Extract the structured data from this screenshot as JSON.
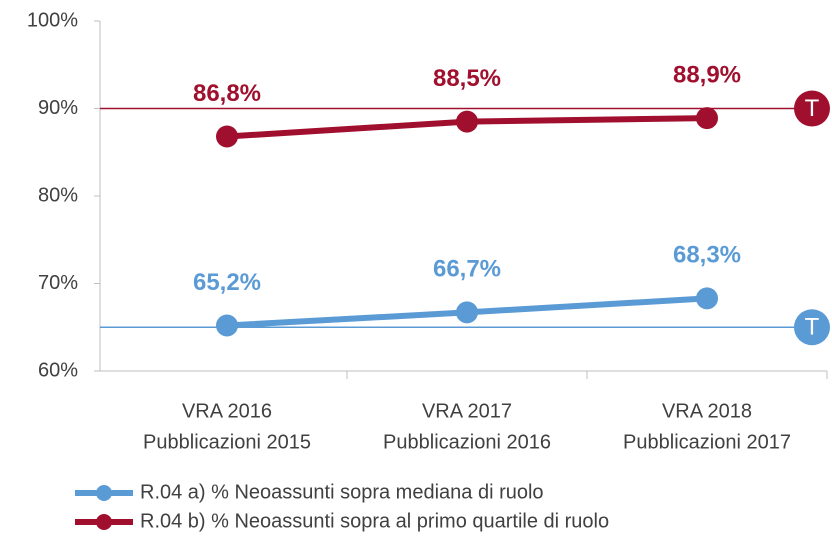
{
  "chart_data": {
    "type": "line",
    "categories": [
      [
        "VRA 2016",
        "Pubblicazioni 2015"
      ],
      [
        "VRA 2017",
        "Pubblicazioni 2016"
      ],
      [
        "VRA 2018",
        "Pubblicazioni 2017"
      ]
    ],
    "series": [
      {
        "name": "R.04 a) % Neoassunti sopra mediana di ruolo",
        "color": "#5b9bd5",
        "values": [
          65.2,
          66.7,
          68.3
        ],
        "value_labels": [
          "65,2%",
          "66,7%",
          "68,3%"
        ],
        "target": 65,
        "target_label": "T"
      },
      {
        "name": "R.04 b) % Neoassunti sopra al primo quartile di ruolo",
        "color": "#a0102e",
        "values": [
          86.8,
          88.5,
          88.9
        ],
        "value_labels": [
          "86,8%",
          "88,5%",
          "88,9%"
        ],
        "target": 90,
        "target_label": "T"
      }
    ],
    "ylim": [
      60,
      100
    ],
    "yticks": [
      {
        "value": 60,
        "label": "60%"
      },
      {
        "value": 70,
        "label": "70%"
      },
      {
        "value": 80,
        "label": "80%"
      },
      {
        "value": 90,
        "label": "90%"
      },
      {
        "value": 100,
        "label": "100%"
      }
    ],
    "grid": false,
    "legend": "bottom"
  }
}
